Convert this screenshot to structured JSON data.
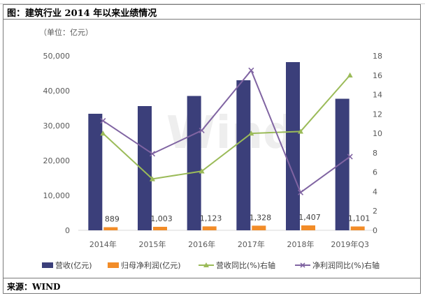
{
  "figure_title": "图：建筑行业 2014 年以来业绩情况",
  "source": "来源：WIND",
  "unit": "（单位：亿元）",
  "colors": {
    "revenue": "#3b3f7a",
    "profit": "#f28c28",
    "revenue_growth": "#9bbb59",
    "profit_growth": "#8064a2"
  },
  "chart_data": {
    "type": "bar",
    "categories": [
      "2014年",
      "2015年",
      "2016年",
      "2017年",
      "2018年",
      "2019年Q3"
    ],
    "series": [
      {
        "name": "营收(亿元)",
        "axis": "left",
        "kind": "bar",
        "values": [
          33400,
          35600,
          38500,
          43000,
          48200,
          37700
        ]
      },
      {
        "name": "归母净利润(亿元)",
        "axis": "left",
        "kind": "bar",
        "values": [
          889,
          1003,
          1123,
          1328,
          1407,
          1101
        ],
        "labels": [
          "889",
          "1,003",
          "1,123",
          "1,328",
          "1,407",
          "1,101"
        ]
      },
      {
        "name": "营收同比(%)右轴",
        "axis": "right",
        "kind": "line",
        "values": [
          10.0,
          5.3,
          6.1,
          10.0,
          10.2,
          16.0
        ]
      },
      {
        "name": "净利润同比(%)右轴",
        "axis": "right",
        "kind": "line",
        "values": [
          11.3,
          7.9,
          10.3,
          16.5,
          3.9,
          7.6
        ]
      }
    ],
    "y_left": {
      "range": [
        0,
        50000
      ],
      "ticks": [
        "0",
        "10,000",
        "20,000",
        "30,000",
        "40,000",
        "50,000"
      ]
    },
    "y_right": {
      "range": [
        0,
        18
      ],
      "ticks": [
        "0",
        "2",
        "4",
        "6",
        "8",
        "10",
        "12",
        "14",
        "16",
        "18"
      ]
    },
    "watermark": "Wind",
    "legend_position": "bottom"
  }
}
